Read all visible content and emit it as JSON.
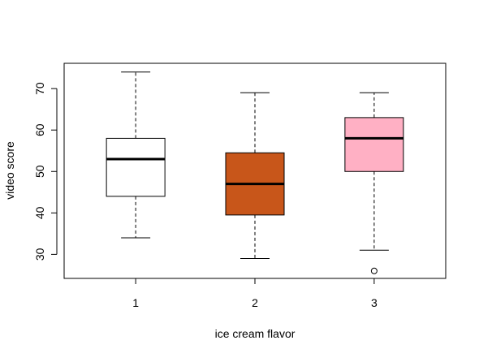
{
  "chart_data": {
    "type": "box",
    "title": "",
    "xlabel": "ice cream flavor",
    "ylabel": "video score",
    "categories": [
      "1",
      "2",
      "3"
    ],
    "yticks": [
      30,
      40,
      50,
      60,
      70
    ],
    "ylim": [
      24.2,
      76.1
    ],
    "grid": false,
    "legend": "none",
    "series": [
      {
        "category": "1",
        "color": "#ffffff",
        "whisker_low": 34,
        "q1": 44,
        "median": 53,
        "q3": 58,
        "whisker_high": 74,
        "outliers": []
      },
      {
        "category": "2",
        "color": "#c8561a",
        "whisker_low": 29,
        "q1": 39.5,
        "median": 47,
        "q3": 54.5,
        "whisker_high": 69,
        "outliers": []
      },
      {
        "category": "3",
        "color": "#ffb0c4",
        "whisker_low": 31,
        "q1": 50,
        "median": 58,
        "q3": 63,
        "whisker_high": 69,
        "outliers": [
          26
        ]
      }
    ]
  }
}
